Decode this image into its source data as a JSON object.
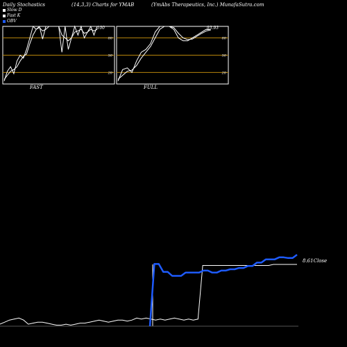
{
  "header": {
    "left": "Daily Stochastics",
    "mid": "(14,3,3) Charts for YMAB",
    "right": "(YmAbs Therapeutics, Inc.) MunafaSutra.com"
  },
  "legend": [
    {
      "label": "Slow  D",
      "color": "#ffffff"
    },
    {
      "label": "Fast K",
      "color": "#ffffff"
    },
    {
      "label": "OBV",
      "color": "#1e5bff"
    }
  ],
  "colors": {
    "grid": "#b8860b",
    "stoch": "#ffffff",
    "obv": "#1e5bff",
    "frame": "#ffffff"
  },
  "chart_data": [
    {
      "type": "line",
      "name": "FAST",
      "ylim": [
        0,
        100
      ],
      "yticks": [
        20,
        50,
        80
      ],
      "top_label": "100",
      "fast_k": [
        5,
        22,
        30,
        18,
        40,
        50,
        45,
        60,
        80,
        100,
        95,
        100,
        78,
        100,
        100,
        100,
        100,
        100,
        55,
        100,
        60,
        80,
        100,
        85,
        100,
        80,
        90,
        100,
        85,
        100
      ],
      "slow_d": [
        8,
        15,
        22,
        25,
        30,
        40,
        48,
        52,
        70,
        85,
        95,
        98,
        92,
        95,
        100,
        100,
        100,
        100,
        85,
        80,
        75,
        80,
        90,
        92,
        95,
        88,
        90,
        95,
        92,
        95
      ]
    },
    {
      "type": "line",
      "name": "FULL",
      "ylim": [
        0,
        100
      ],
      "yticks": [
        20,
        50,
        80
      ],
      "top_label": "93.93",
      "fast_k": [
        5,
        25,
        28,
        20,
        40,
        55,
        60,
        70,
        90,
        100,
        100,
        100,
        95,
        80,
        75,
        75,
        80,
        85,
        90,
        95,
        94
      ],
      "slow_d": [
        8,
        15,
        22,
        24,
        32,
        45,
        55,
        65,
        80,
        95,
        100,
        100,
        98,
        88,
        80,
        77,
        78,
        83,
        88,
        92,
        94
      ]
    },
    {
      "type": "line",
      "name": "Close / OBV",
      "close_label": "8.61Close",
      "close_values": [
        42,
        44,
        46,
        47,
        48,
        46,
        42,
        43,
        44,
        44,
        43,
        42,
        41,
        41,
        42,
        41,
        42,
        43,
        43,
        44,
        45,
        46,
        45,
        44,
        45,
        46,
        46,
        45,
        46,
        48,
        47,
        48,
        47,
        46,
        47,
        46,
        47,
        48,
        47,
        46,
        47,
        46,
        47,
        100,
        100,
        100,
        100,
        100,
        100,
        100,
        100,
        100,
        100,
        100,
        100,
        100,
        100,
        100,
        101,
        101,
        101,
        101,
        101,
        101
      ],
      "obv_values": [
        0,
        94,
        94,
        82,
        82,
        76,
        76,
        76,
        81,
        81,
        81,
        81,
        84,
        84,
        81,
        81,
        84,
        84,
        86,
        86,
        88,
        88,
        91,
        91,
        96,
        96,
        101,
        101,
        101,
        104,
        104,
        103,
        103,
        108
      ]
    }
  ]
}
